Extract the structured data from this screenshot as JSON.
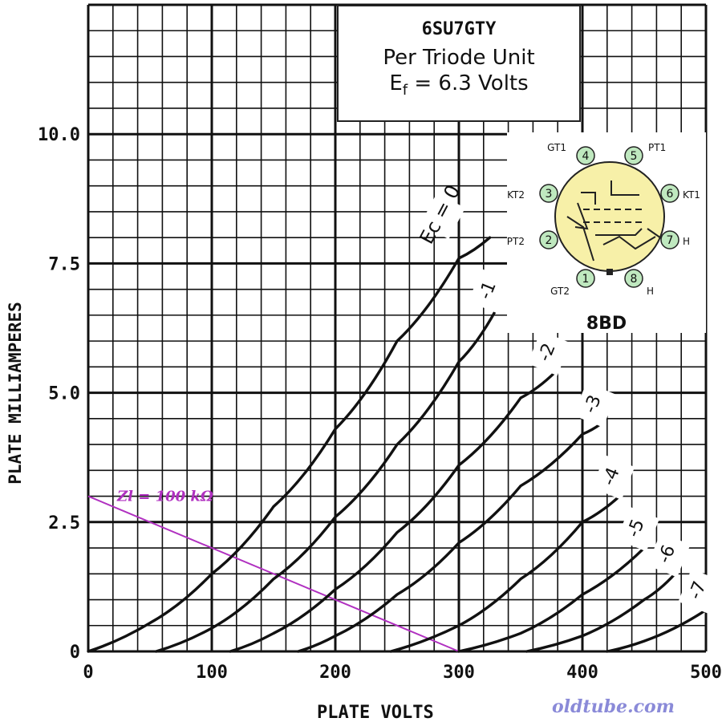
{
  "chart_data": {
    "type": "line",
    "title": "6SU7GTY",
    "subtitle": "Per Triode Unit",
    "filament_symbol": "E",
    "filament_sub": "f",
    "filament_value": "= 6.3 Volts",
    "xlabel": "PLATE VOLTS",
    "ylabel": "PLATE MILLIAMPERES",
    "xlim": [
      0,
      500
    ],
    "ylim": [
      0,
      12.5
    ],
    "x_ticks": [
      "0",
      "100",
      "200",
      "300",
      "400",
      "500"
    ],
    "y_ticks": [
      "0",
      "2.5",
      "5.0",
      "7.5",
      "10.0"
    ],
    "grid": true,
    "series": [
      {
        "name": "Ec = 0",
        "x": [
          0,
          50,
          100,
          150,
          200,
          250,
          300,
          325
        ],
        "y": [
          0,
          0.55,
          1.5,
          2.8,
          4.3,
          6.0,
          7.6,
          8.0
        ]
      },
      {
        "name": "-1",
        "x": [
          55,
          100,
          150,
          200,
          250,
          300,
          330
        ],
        "y": [
          0,
          0.45,
          1.4,
          2.6,
          4.0,
          5.6,
          6.6
        ]
      },
      {
        "name": "-2",
        "x": [
          115,
          150,
          200,
          250,
          300,
          350,
          378
        ],
        "y": [
          0,
          0.35,
          1.2,
          2.3,
          3.6,
          4.9,
          5.4
        ]
      },
      {
        "name": "-3",
        "x": [
          170,
          200,
          250,
          300,
          350,
          400,
          415
        ],
        "y": [
          0,
          0.3,
          1.1,
          2.1,
          3.2,
          4.2,
          4.4
        ]
      },
      {
        "name": "-4",
        "x": [
          245,
          300,
          350,
          400,
          430
        ],
        "y": [
          0,
          0.5,
          1.4,
          2.5,
          3.0
        ]
      },
      {
        "name": "-5",
        "x": [
          300,
          350,
          400,
          450
        ],
        "y": [
          0,
          0.35,
          1.1,
          2.0
        ]
      },
      {
        "name": "-6",
        "x": [
          355,
          400,
          450,
          475
        ],
        "y": [
          0,
          0.3,
          1.0,
          1.5
        ]
      },
      {
        "name": "-7",
        "x": [
          420,
          450,
          500
        ],
        "y": [
          0,
          0.2,
          0.8
        ]
      }
    ],
    "load_line": {
      "label": "Zl = 100 kΩ",
      "x": [
        0,
        300
      ],
      "y": [
        3,
        0
      ],
      "color": "#b030c0"
    }
  },
  "base_diagram": {
    "code": "8BD",
    "pins": [
      {
        "num": "1",
        "label": "GT2"
      },
      {
        "num": "2",
        "label": "PT2"
      },
      {
        "num": "3",
        "label": "KT2"
      },
      {
        "num": "4",
        "label": "GT1"
      },
      {
        "num": "5",
        "label": "PT1"
      },
      {
        "num": "6",
        "label": "KT1"
      },
      {
        "num": "7",
        "label": "H"
      },
      {
        "num": "8",
        "label": "H"
      }
    ],
    "pin_color": "#bfe8bf",
    "envelope_color": "#f7f0a8"
  },
  "watermark": "oldtube.com"
}
